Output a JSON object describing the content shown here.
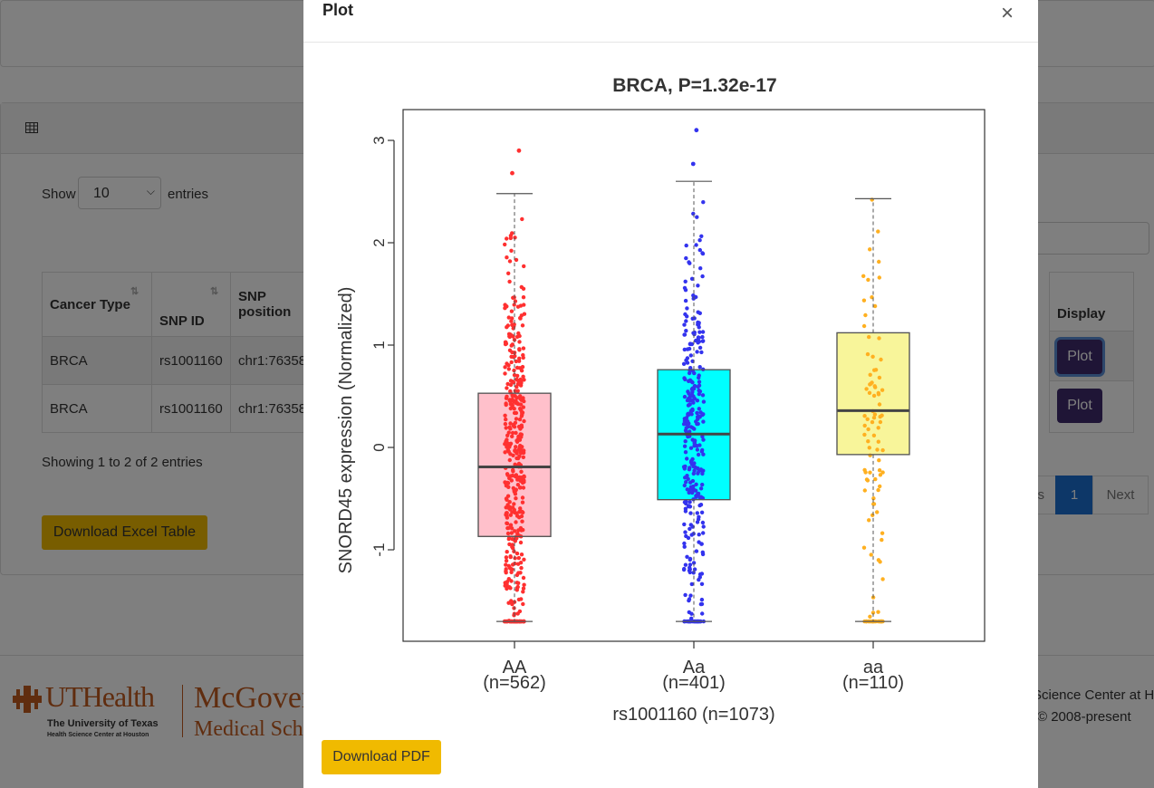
{
  "background": {
    "show_label": "Show",
    "entries_value": "10",
    "entries_label": "entries",
    "table": {
      "headers": [
        "Cancer Type",
        "SNP ID",
        "SNP position",
        "Display"
      ],
      "rows": [
        {
          "cancer": "BRCA",
          "snp": "rs1001160",
          "pos": "chr1:76358",
          "btn": "Plot"
        },
        {
          "cancer": "BRCA",
          "snp": "rs1001160",
          "pos": "chr1:76358",
          "btn": "Plot"
        }
      ]
    },
    "showing": "Showing 1 to 2 of 2 entries",
    "download_excel": "Download Excel Table",
    "pagination": {
      "prev": "Previous",
      "current": "1",
      "next": "Next"
    },
    "footer": {
      "ut_brand": "UTHealth",
      "ut_sub1": "The University of Texas",
      "ut_sub2": "Health Science Center at Houston",
      "mcgovern": "McGovern",
      "medical_school": "Medical School",
      "right_line1": "Science Center at H",
      "right_line2": "© 2008-present"
    }
  },
  "modal": {
    "title": "Plot",
    "close": "×",
    "download_pdf": "Download PDF"
  },
  "chart_data": {
    "type": "box",
    "title": "BRCA, P=1.32e-17",
    "xlabel": "rs1001160 (n=1073)",
    "ylabel": "SNORD45 expression (Normalized)",
    "ylim": [
      -1.7,
      3.3
    ],
    "yticks": [
      -1,
      0,
      1,
      2,
      3
    ],
    "groups": [
      {
        "label": "AA",
        "n_label": "(n=562)",
        "n": 562,
        "min": -1.7,
        "q1": -0.87,
        "median": -0.19,
        "q3": 0.53,
        "max": 2.48,
        "outliers": [
          2.68,
          2.9
        ],
        "box_color": "#ffc0cb",
        "point_color": "#ff3030"
      },
      {
        "label": "Aa",
        "n_label": "(n=401)",
        "n": 401,
        "min": -1.7,
        "q1": -0.51,
        "median": 0.13,
        "q3": 0.76,
        "max": 2.6,
        "outliers": [
          2.77,
          3.1
        ],
        "box_color": "#00ffff",
        "point_color": "#3333ee"
      },
      {
        "label": "aa",
        "n_label": "(n=110)",
        "n": 110,
        "min": -1.7,
        "q1": -0.07,
        "median": 0.36,
        "q3": 1.12,
        "max": 2.43,
        "outliers": [],
        "box_color": "#f8f59a",
        "point_color": "#ffb020"
      }
    ]
  }
}
